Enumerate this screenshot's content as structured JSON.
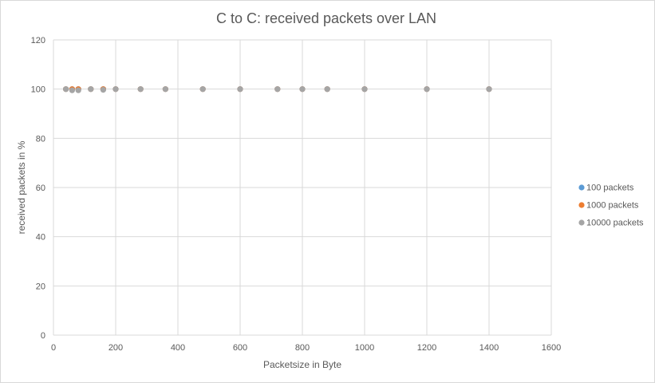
{
  "chart_data": {
    "type": "scatter",
    "title": "C to C: received packets over LAN",
    "xlabel": "Packetsize in Byte",
    "ylabel": "received packets in %",
    "xlim": [
      0,
      1600
    ],
    "ylim": [
      0,
      120
    ],
    "xticks": [
      0,
      200,
      400,
      600,
      800,
      1000,
      1200,
      1400,
      1600
    ],
    "yticks": [
      0,
      20,
      40,
      60,
      80,
      100,
      120
    ],
    "grid": true,
    "legend_position": "right",
    "series": [
      {
        "name": "100 packets",
        "color": "#5b9bd5",
        "points": [
          [
            40,
            100
          ],
          [
            60,
            100
          ],
          [
            80,
            100
          ],
          [
            120,
            100
          ],
          [
            160,
            100
          ],
          [
            200,
            100
          ],
          [
            280,
            100
          ],
          [
            360,
            100
          ],
          [
            480,
            100
          ],
          [
            600,
            100
          ],
          [
            720,
            100
          ],
          [
            800,
            100
          ],
          [
            880,
            100
          ],
          [
            1000,
            100
          ],
          [
            1200,
            100
          ],
          [
            1400,
            100
          ]
        ]
      },
      {
        "name": "1000  packets",
        "color": "#ed7d31",
        "points": [
          [
            40,
            100
          ],
          [
            60,
            100
          ],
          [
            80,
            100
          ],
          [
            120,
            100
          ],
          [
            160,
            100
          ],
          [
            200,
            100
          ],
          [
            280,
            100
          ],
          [
            360,
            100
          ],
          [
            480,
            100
          ],
          [
            600,
            100
          ],
          [
            720,
            100
          ],
          [
            800,
            100
          ],
          [
            880,
            100
          ],
          [
            1000,
            100
          ],
          [
            1200,
            100
          ],
          [
            1400,
            100
          ]
        ]
      },
      {
        "name": "10000  packets",
        "color": "#a5a5a5",
        "points": [
          [
            40,
            100
          ],
          [
            60,
            99.5
          ],
          [
            80,
            99.5
          ],
          [
            120,
            100
          ],
          [
            160,
            99.7
          ],
          [
            200,
            100
          ],
          [
            280,
            100
          ],
          [
            360,
            100
          ],
          [
            480,
            100
          ],
          [
            600,
            100
          ],
          [
            720,
            100
          ],
          [
            800,
            100
          ],
          [
            880,
            100
          ],
          [
            1000,
            100
          ],
          [
            1200,
            100
          ],
          [
            1400,
            100
          ]
        ]
      }
    ]
  }
}
